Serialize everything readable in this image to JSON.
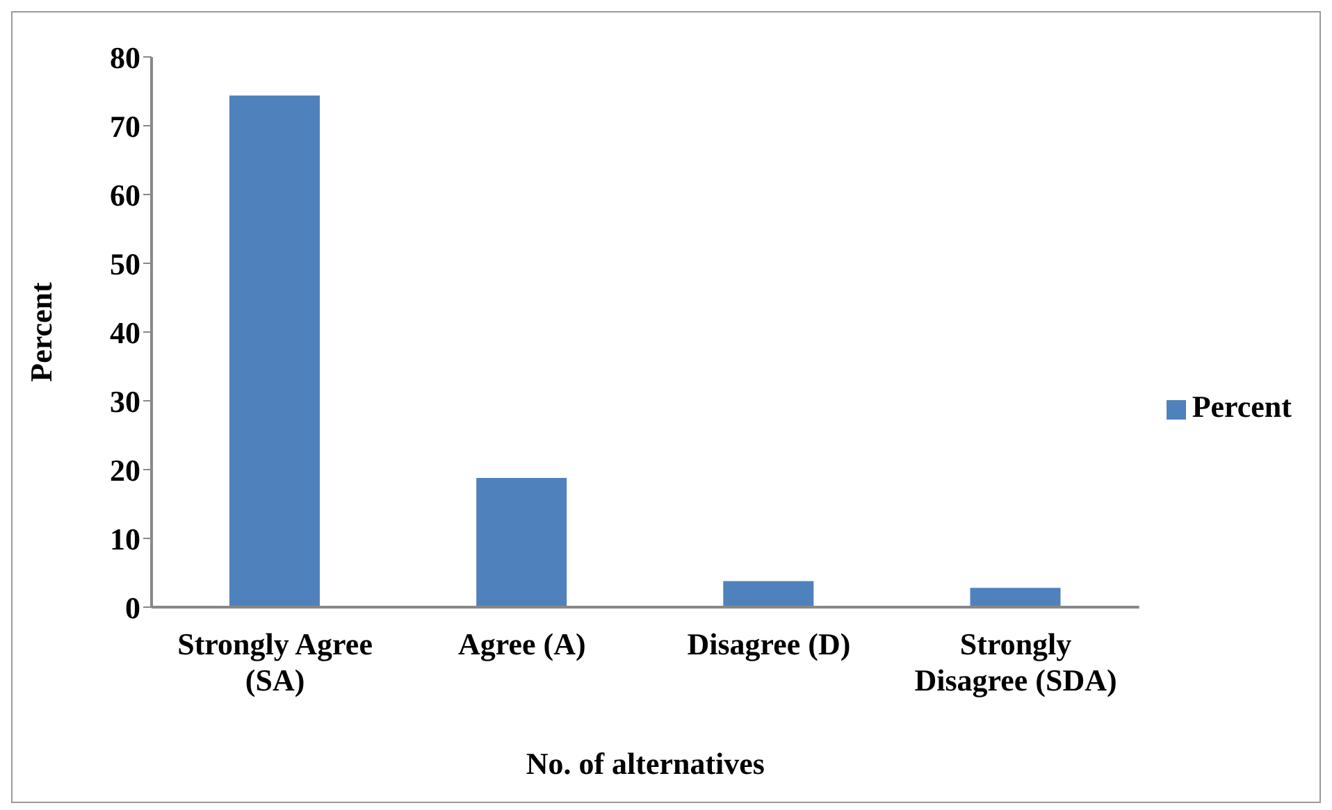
{
  "chart_data": {
    "type": "bar",
    "xlabel": "No. of alternatives",
    "ylabel": "Percent",
    "categories": [
      "Strongly Agree (SA)",
      "Agree (A)",
      "Disagree (D)",
      "Strongly Disagree (SDA)"
    ],
    "series": [
      {
        "name": "Percent",
        "color": "#4f81bd",
        "values": [
          74.4,
          18.8,
          3.8,
          2.8
        ]
      }
    ],
    "ylim": [
      0,
      80
    ],
    "yticks": [
      0,
      10,
      20,
      30,
      40,
      50,
      60,
      70,
      80
    ],
    "grid": false,
    "legend": "right"
  }
}
